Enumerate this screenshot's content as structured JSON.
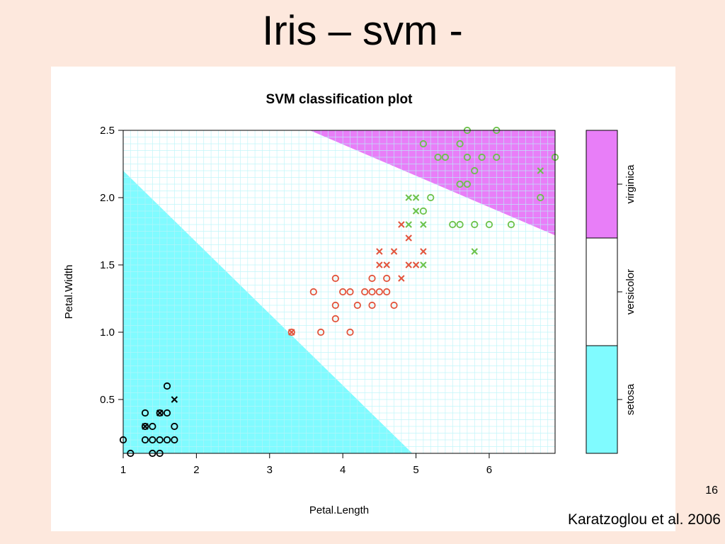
{
  "slide": {
    "title": "Iris – svm -",
    "page_number": "16",
    "citation": "Karatzoglou et al. 2006"
  },
  "colors": {
    "setosa": "#80fbff",
    "versicolor": "#ffffff",
    "virginica": "#e87ef8",
    "grid": "#b7f3f8",
    "point_setosa": "#000000",
    "point_versicolor": "#e2543c",
    "point_virginica": "#6cc24a",
    "background": "#fde8dd"
  },
  "chart_data": {
    "type": "scatter",
    "title": "SVM classification plot",
    "xlabel": "Petal.Length",
    "ylabel": "Petal.Width",
    "xlim": [
      1,
      6.9
    ],
    "ylim": [
      0.1,
      2.5
    ],
    "xticks": [
      "1",
      "2",
      "3",
      "4",
      "5",
      "6"
    ],
    "yticks": [
      "0.5",
      "1.0",
      "1.5",
      "2.0",
      "2.5"
    ],
    "grid": true,
    "regions": {
      "setosa_boundary": [
        [
          1.0,
          2.2
        ],
        [
          4.95,
          0.1
        ]
      ],
      "virginica_boundary": [
        [
          3.55,
          2.5
        ],
        [
          6.9,
          1.72
        ]
      ]
    },
    "legend": {
      "placement": "right",
      "entries": [
        "setosa",
        "versicolor",
        "virginica"
      ]
    },
    "series": [
      {
        "name": "setosa",
        "points": [
          {
            "x": 1.6,
            "y": 0.6,
            "m": "o"
          },
          {
            "x": 1.7,
            "y": 0.5,
            "m": "x"
          },
          {
            "x": 1.3,
            "y": 0.4,
            "m": "o"
          },
          {
            "x": 1.5,
            "y": 0.4,
            "m": "o"
          },
          {
            "x": 1.5,
            "y": 0.4,
            "m": "x"
          },
          {
            "x": 1.6,
            "y": 0.4,
            "m": "o"
          },
          {
            "x": 1.3,
            "y": 0.3,
            "m": "o"
          },
          {
            "x": 1.3,
            "y": 0.3,
            "m": "x"
          },
          {
            "x": 1.4,
            "y": 0.3,
            "m": "o"
          },
          {
            "x": 1.7,
            "y": 0.3,
            "m": "o"
          },
          {
            "x": 1.0,
            "y": 0.2,
            "m": "o"
          },
          {
            "x": 1.3,
            "y": 0.2,
            "m": "o"
          },
          {
            "x": 1.4,
            "y": 0.2,
            "m": "o"
          },
          {
            "x": 1.5,
            "y": 0.2,
            "m": "o"
          },
          {
            "x": 1.6,
            "y": 0.2,
            "m": "o"
          },
          {
            "x": 1.7,
            "y": 0.2,
            "m": "o"
          },
          {
            "x": 1.1,
            "y": 0.1,
            "m": "o"
          },
          {
            "x": 1.4,
            "y": 0.1,
            "m": "o"
          },
          {
            "x": 1.5,
            "y": 0.1,
            "m": "o"
          }
        ]
      },
      {
        "name": "versicolor",
        "points": [
          {
            "x": 4.8,
            "y": 1.8,
            "m": "x"
          },
          {
            "x": 4.9,
            "y": 1.7,
            "m": "x"
          },
          {
            "x": 4.5,
            "y": 1.6,
            "m": "x"
          },
          {
            "x": 4.7,
            "y": 1.6,
            "m": "x"
          },
          {
            "x": 5.1,
            "y": 1.6,
            "m": "x"
          },
          {
            "x": 4.5,
            "y": 1.5,
            "m": "x"
          },
          {
            "x": 4.6,
            "y": 1.5,
            "m": "x"
          },
          {
            "x": 4.9,
            "y": 1.5,
            "m": "x"
          },
          {
            "x": 5.0,
            "y": 1.5,
            "m": "x"
          },
          {
            "x": 3.9,
            "y": 1.4,
            "m": "o"
          },
          {
            "x": 4.4,
            "y": 1.4,
            "m": "o"
          },
          {
            "x": 4.6,
            "y": 1.4,
            "m": "o"
          },
          {
            "x": 4.8,
            "y": 1.4,
            "m": "x"
          },
          {
            "x": 3.6,
            "y": 1.3,
            "m": "o"
          },
          {
            "x": 4.0,
            "y": 1.3,
            "m": "o"
          },
          {
            "x": 4.1,
            "y": 1.3,
            "m": "o"
          },
          {
            "x": 4.3,
            "y": 1.3,
            "m": "o"
          },
          {
            "x": 4.4,
            "y": 1.3,
            "m": "o"
          },
          {
            "x": 4.5,
            "y": 1.3,
            "m": "o"
          },
          {
            "x": 4.6,
            "y": 1.3,
            "m": "o"
          },
          {
            "x": 3.9,
            "y": 1.2,
            "m": "o"
          },
          {
            "x": 4.2,
            "y": 1.2,
            "m": "o"
          },
          {
            "x": 4.4,
            "y": 1.2,
            "m": "o"
          },
          {
            "x": 4.7,
            "y": 1.2,
            "m": "o"
          },
          {
            "x": 3.9,
            "y": 1.1,
            "m": "o"
          },
          {
            "x": 3.3,
            "y": 1.0,
            "m": "o"
          },
          {
            "x": 3.3,
            "y": 1.0,
            "m": "x"
          },
          {
            "x": 3.7,
            "y": 1.0,
            "m": "o"
          },
          {
            "x": 4.1,
            "y": 1.0,
            "m": "o"
          }
        ]
      },
      {
        "name": "virginica",
        "points": [
          {
            "x": 5.7,
            "y": 2.5,
            "m": "o"
          },
          {
            "x": 6.1,
            "y": 2.5,
            "m": "o"
          },
          {
            "x": 5.1,
            "y": 2.4,
            "m": "o"
          },
          {
            "x": 5.6,
            "y": 2.4,
            "m": "o"
          },
          {
            "x": 5.3,
            "y": 2.3,
            "m": "o"
          },
          {
            "x": 5.4,
            "y": 2.3,
            "m": "o"
          },
          {
            "x": 5.7,
            "y": 2.3,
            "m": "o"
          },
          {
            "x": 5.9,
            "y": 2.3,
            "m": "o"
          },
          {
            "x": 6.1,
            "y": 2.3,
            "m": "o"
          },
          {
            "x": 6.9,
            "y": 2.3,
            "m": "o"
          },
          {
            "x": 5.8,
            "y": 2.2,
            "m": "o"
          },
          {
            "x": 6.7,
            "y": 2.2,
            "m": "x"
          },
          {
            "x": 5.6,
            "y": 2.1,
            "m": "o"
          },
          {
            "x": 5.7,
            "y": 2.1,
            "m": "o"
          },
          {
            "x": 4.9,
            "y": 2.0,
            "m": "x"
          },
          {
            "x": 5.0,
            "y": 2.0,
            "m": "x"
          },
          {
            "x": 5.2,
            "y": 2.0,
            "m": "o"
          },
          {
            "x": 6.7,
            "y": 2.0,
            "m": "o"
          },
          {
            "x": 5.0,
            "y": 1.9,
            "m": "x"
          },
          {
            "x": 5.1,
            "y": 1.9,
            "m": "o"
          },
          {
            "x": 4.9,
            "y": 1.8,
            "m": "x"
          },
          {
            "x": 5.1,
            "y": 1.8,
            "m": "x"
          },
          {
            "x": 5.5,
            "y": 1.8,
            "m": "o"
          },
          {
            "x": 5.6,
            "y": 1.8,
            "m": "o"
          },
          {
            "x": 5.8,
            "y": 1.8,
            "m": "o"
          },
          {
            "x": 6.0,
            "y": 1.8,
            "m": "o"
          },
          {
            "x": 6.3,
            "y": 1.8,
            "m": "o"
          },
          {
            "x": 5.8,
            "y": 1.6,
            "m": "x"
          },
          {
            "x": 5.1,
            "y": 1.5,
            "m": "x"
          }
        ]
      }
    ]
  }
}
